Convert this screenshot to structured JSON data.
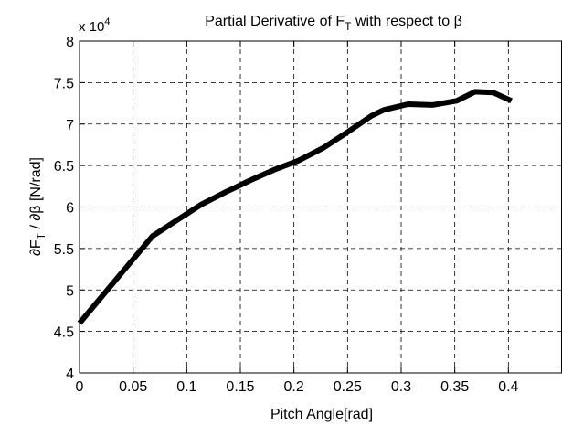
{
  "chart_data": {
    "type": "line",
    "title_prefix": "Partial Derivative of ",
    "title_var": "F",
    "title_sub": "T",
    "title_suffix": " with respect to β",
    "xlabel": "Pitch Angle[rad]",
    "ylabel_partial1": "∂F",
    "ylabel_sub": "T",
    "ylabel_rest": " / ∂β  [N/rad]",
    "exponent_base": "x 10",
    "exponent_power": "4",
    "xlim": [
      0,
      0.45
    ],
    "ylim": [
      4,
      8
    ],
    "x_ticks": [
      0,
      0.05,
      0.1,
      0.15,
      0.2,
      0.25,
      0.3,
      0.35,
      0.4
    ],
    "x_tick_labels": [
      "0",
      "0.05",
      "0.1",
      "0.15",
      "0.2",
      "0.25",
      "0.3",
      "0.35",
      "0.4"
    ],
    "y_ticks": [
      4,
      4.5,
      5,
      5.5,
      6,
      6.5,
      7,
      7.5,
      8
    ],
    "y_tick_labels": [
      "4",
      "4.5",
      "5",
      "5.5",
      "6",
      "6.5",
      "7",
      "7.5",
      "8"
    ],
    "grid": true,
    "series": [
      {
        "color": "#000000",
        "x": [
          0,
          0.0227,
          0.0454,
          0.0681,
          0.0908,
          0.1135,
          0.1362,
          0.1589,
          0.1816,
          0.2043,
          0.227,
          0.2497,
          0.2724,
          0.2837,
          0.3064,
          0.3291,
          0.3518,
          0.3689,
          0.3859,
          0.4029
        ],
        "y": [
          4.6,
          4.95,
          5.3,
          5.65,
          5.84,
          6.03,
          6.18,
          6.32,
          6.45,
          6.56,
          6.71,
          6.9,
          7.1,
          7.17,
          7.24,
          7.23,
          7.28,
          7.39,
          7.38,
          7.28
        ]
      }
    ]
  }
}
